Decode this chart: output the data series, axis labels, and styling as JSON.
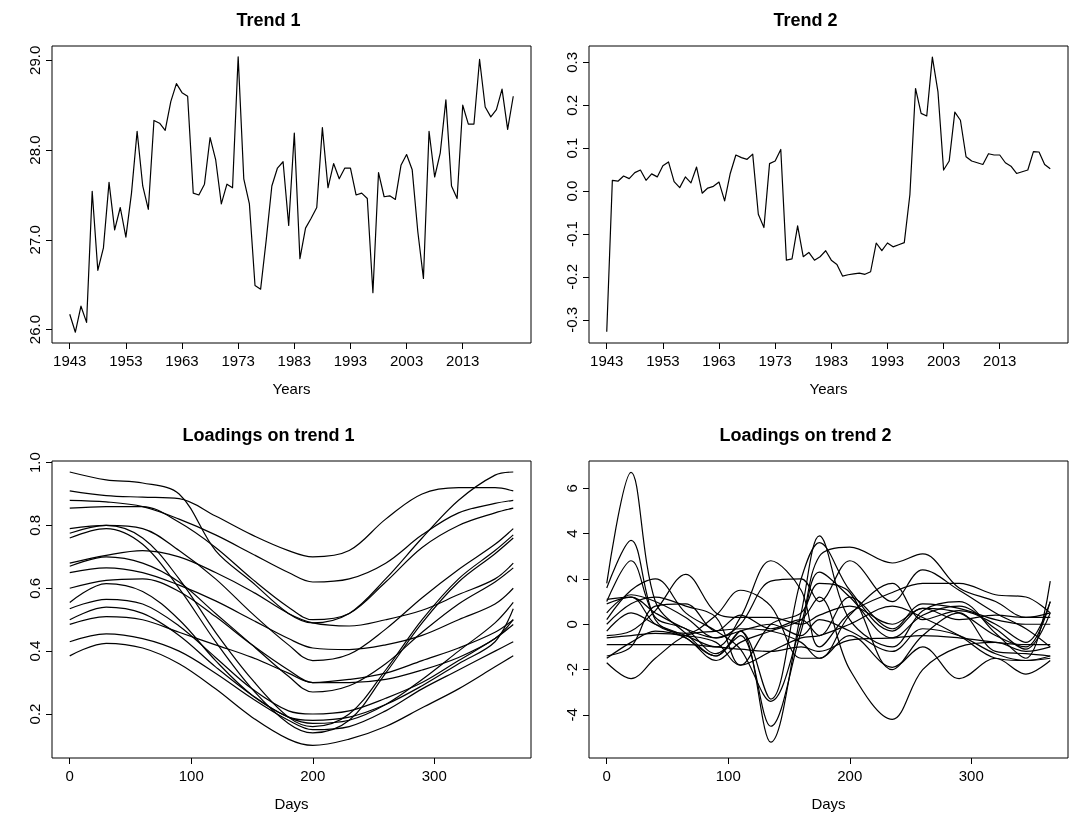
{
  "chart_data": [
    {
      "type": "line",
      "title": "Trend 1",
      "xlabel": "Years",
      "x": [
        1943,
        1944,
        1945,
        1946,
        1947,
        1948,
        1949,
        1950,
        1951,
        1952,
        1953,
        1954,
        1955,
        1956,
        1957,
        1958,
        1959,
        1960,
        1961,
        1962,
        1963,
        1964,
        1965,
        1966,
        1967,
        1968,
        1969,
        1970,
        1971,
        1972,
        1973,
        1974,
        1975,
        1976,
        1977,
        1978,
        1979,
        1980,
        1981,
        1982,
        1983,
        1984,
        1985,
        1986,
        1987,
        1988,
        1989,
        1990,
        1991,
        1992,
        1993,
        1994,
        1995,
        1996,
        1997,
        1998,
        1999,
        2000,
        2001,
        2002,
        2003,
        2004,
        2005,
        2006,
        2007,
        2008,
        2009,
        2010,
        2011,
        2012,
        2013,
        2014,
        2015,
        2016,
        2017,
        2018,
        2019,
        2020,
        2021,
        2022
      ],
      "xlim": [
        1939.84,
        2025.16
      ],
      "xticks": [
        1943,
        1953,
        1963,
        1973,
        1983,
        1993,
        2003,
        2013
      ],
      "ylim": [
        25.85,
        29.16
      ],
      "yticks": [
        {
          "value": 26,
          "label": "26.0"
        },
        {
          "value": 27,
          "label": "27.0"
        },
        {
          "value": 28,
          "label": "28.0"
        },
        {
          "value": 29,
          "label": "29.0"
        }
      ],
      "series": [
        {
          "color": "#000000",
          "values": [
            26.17,
            25.97,
            26.26,
            26.08,
            27.54,
            26.66,
            26.91,
            27.64,
            27.11,
            27.36,
            27.03,
            27.52,
            28.21,
            27.6,
            27.34,
            28.33,
            28.3,
            28.22,
            28.54,
            28.74,
            28.64,
            28.6,
            27.52,
            27.5,
            27.62,
            28.14,
            27.89,
            27.4,
            27.62,
            27.58,
            29.04,
            27.68,
            27.4,
            26.49,
            26.45,
            27.0,
            27.6,
            27.8,
            27.87,
            27.16,
            28.19,
            26.79,
            27.13,
            27.24,
            27.36,
            28.25,
            27.58,
            27.85,
            27.68,
            27.8,
            27.8,
            27.5,
            27.52,
            27.46,
            26.41,
            27.75,
            27.48,
            27.49,
            27.45,
            27.83,
            27.95,
            27.78,
            27.09,
            26.57,
            28.21,
            27.7,
            27.97,
            28.56,
            27.6,
            27.46,
            28.5,
            28.29,
            28.29,
            29.01,
            28.48,
            28.37,
            28.45,
            28.68,
            28.23,
            28.6
          ]
        }
      ]
    },
    {
      "type": "line",
      "title": "Trend 2",
      "xlabel": "Years",
      "x": [
        1943,
        1944,
        1945,
        1946,
        1947,
        1948,
        1949,
        1950,
        1951,
        1952,
        1953,
        1954,
        1955,
        1956,
        1957,
        1958,
        1959,
        1960,
        1961,
        1962,
        1963,
        1964,
        1965,
        1966,
        1967,
        1968,
        1969,
        1970,
        1971,
        1972,
        1973,
        1974,
        1975,
        1976,
        1977,
        1978,
        1979,
        1980,
        1981,
        1982,
        1983,
        1984,
        1985,
        1986,
        1987,
        1988,
        1989,
        1990,
        1991,
        1992,
        1993,
        1994,
        1995,
        1996,
        1997,
        1998,
        1999,
        2000,
        2001,
        2002,
        2003,
        2004,
        2005,
        2006,
        2007,
        2008,
        2009,
        2010,
        2011,
        2012,
        2013,
        2014,
        2015,
        2016,
        2017,
        2018,
        2019,
        2020,
        2021,
        2022
      ],
      "xlim": [
        1939.84,
        2025.16
      ],
      "xticks": [
        1943,
        1953,
        1963,
        1973,
        1983,
        1993,
        2003,
        2013
      ],
      "ylim": [
        -0.354,
        0.338
      ],
      "yticks": [
        -0.3,
        -0.2,
        -0.1,
        {
          "value": 0,
          "label": "0.0"
        },
        0.1,
        0.2,
        0.3
      ],
      "series": [
        {
          "color": "#000000",
          "values": [
            -0.328,
            0.025,
            0.023,
            0.035,
            0.029,
            0.043,
            0.049,
            0.025,
            0.04,
            0.033,
            0.059,
            0.068,
            0.022,
            0.008,
            0.033,
            0.019,
            0.056,
            -0.005,
            0.007,
            0.011,
            0.021,
            -0.023,
            0.041,
            0.084,
            0.078,
            0.074,
            0.086,
            -0.054,
            -0.085,
            0.064,
            0.07,
            0.097,
            -0.161,
            -0.158,
            -0.081,
            -0.153,
            -0.143,
            -0.161,
            -0.153,
            -0.139,
            -0.161,
            -0.171,
            -0.198,
            -0.195,
            -0.193,
            -0.191,
            -0.194,
            -0.188,
            -0.121,
            -0.139,
            -0.121,
            -0.13,
            -0.125,
            -0.12,
            -0.008,
            0.239,
            0.181,
            0.175,
            0.312,
            0.231,
            0.049,
            0.07,
            0.184,
            0.165,
            0.08,
            0.07,
            0.066,
            0.062,
            0.087,
            0.084,
            0.084,
            0.066,
            0.058,
            0.041,
            0.045,
            0.049,
            0.092,
            0.091,
            0.062,
            0.052
          ]
        }
      ]
    },
    {
      "type": "line",
      "title": "Loadings on trend 1",
      "xlabel": "Days",
      "x": [
        0,
        30,
        60,
        90,
        120,
        150,
        180,
        200,
        230,
        260,
        290,
        320,
        350,
        365
      ],
      "xlim": [
        -14.6,
        379.6
      ],
      "xticks": [
        0,
        100,
        200,
        300
      ],
      "ylim": [
        0.06,
        1.005
      ],
      "yticks": [
        0.2,
        0.4,
        0.6,
        0.8,
        {
          "value": 1,
          "label": "1.0"
        }
      ],
      "series": [
        {
          "color": "#000000",
          "values": [
            0.97,
            0.945,
            0.935,
            0.9,
            0.72,
            0.62,
            0.52,
            0.49,
            0.52,
            0.63,
            0.76,
            0.88,
            0.96,
            0.97
          ]
        },
        {
          "color": "#000000",
          "values": [
            0.91,
            0.895,
            0.89,
            0.885,
            0.83,
            0.77,
            0.72,
            0.7,
            0.72,
            0.82,
            0.9,
            0.92,
            0.92,
            0.91
          ]
        },
        {
          "color": "#000000",
          "values": [
            0.88,
            0.875,
            0.86,
            0.82,
            0.77,
            0.71,
            0.65,
            0.62,
            0.63,
            0.68,
            0.77,
            0.84,
            0.87,
            0.88
          ]
        },
        {
          "color": "#000000",
          "values": [
            0.855,
            0.86,
            0.86,
            0.81,
            0.73,
            0.63,
            0.54,
            0.5,
            0.52,
            0.62,
            0.73,
            0.8,
            0.84,
            0.855
          ]
        },
        {
          "color": "#000000",
          "values": [
            0.79,
            0.8,
            0.79,
            0.72,
            0.63,
            0.52,
            0.42,
            0.37,
            0.39,
            0.47,
            0.57,
            0.66,
            0.74,
            0.79
          ]
        },
        {
          "color": "#000000",
          "values": [
            0.775,
            0.8,
            0.76,
            0.63,
            0.46,
            0.31,
            0.19,
            0.16,
            0.2,
            0.34,
            0.5,
            0.63,
            0.72,
            0.77
          ]
        },
        {
          "color": "#000000",
          "values": [
            0.76,
            0.79,
            0.74,
            0.6,
            0.43,
            0.28,
            0.17,
            0.14,
            0.18,
            0.33,
            0.49,
            0.62,
            0.71,
            0.76
          ]
        },
        {
          "color": "#000000",
          "values": [
            0.68,
            0.705,
            0.72,
            0.7,
            0.65,
            0.59,
            0.52,
            0.49,
            0.48,
            0.5,
            0.53,
            0.58,
            0.63,
            0.68
          ]
        },
        {
          "color": "#000000",
          "values": [
            0.67,
            0.7,
            0.68,
            0.62,
            0.52,
            0.42,
            0.32,
            0.27,
            0.29,
            0.36,
            0.46,
            0.55,
            0.62,
            0.665
          ]
        },
        {
          "color": "#000000",
          "values": [
            0.65,
            0.665,
            0.65,
            0.61,
            0.56,
            0.5,
            0.44,
            0.41,
            0.405,
            0.42,
            0.45,
            0.5,
            0.55,
            0.6
          ]
        },
        {
          "color": "#000000",
          "values": [
            0.6,
            0.625,
            0.63,
            0.59,
            0.51,
            0.42,
            0.34,
            0.3,
            0.31,
            0.33,
            0.37,
            0.41,
            0.46,
            0.5
          ]
        },
        {
          "color": "#000000",
          "values": [
            0.555,
            0.615,
            0.59,
            0.5,
            0.37,
            0.26,
            0.19,
            0.17,
            0.18,
            0.23,
            0.31,
            0.4,
            0.49,
            0.555
          ]
        },
        {
          "color": "#000000",
          "values": [
            0.535,
            0.565,
            0.55,
            0.48,
            0.38,
            0.28,
            0.21,
            0.2,
            0.21,
            0.25,
            0.3,
            0.37,
            0.44,
            0.485
          ]
        },
        {
          "color": "#000000",
          "values": [
            0.5,
            0.54,
            0.52,
            0.45,
            0.35,
            0.26,
            0.19,
            0.18,
            0.19,
            0.23,
            0.29,
            0.36,
            0.43,
            0.535
          ]
        },
        {
          "color": "#000000",
          "values": [
            0.485,
            0.51,
            0.5,
            0.46,
            0.42,
            0.38,
            0.33,
            0.3,
            0.3,
            0.31,
            0.34,
            0.38,
            0.44,
            0.5
          ]
        },
        {
          "color": "#000000",
          "values": [
            0.43,
            0.455,
            0.44,
            0.4,
            0.33,
            0.25,
            0.18,
            0.15,
            0.16,
            0.21,
            0.28,
            0.34,
            0.4,
            0.43
          ]
        },
        {
          "color": "#000000",
          "values": [
            0.385,
            0.425,
            0.41,
            0.36,
            0.28,
            0.19,
            0.12,
            0.1,
            0.12,
            0.16,
            0.22,
            0.28,
            0.35,
            0.385
          ]
        }
      ]
    },
    {
      "type": "line",
      "title": "Loadings on trend 2",
      "xlabel": "Days",
      "x": [
        0,
        20,
        40,
        65,
        90,
        110,
        135,
        160,
        175,
        200,
        235,
        260,
        290,
        320,
        345,
        365
      ],
      "xlim": [
        -14.6,
        379.6
      ],
      "xticks": [
        0,
        100,
        200,
        300
      ],
      "ylim": [
        -5.9,
        7.2
      ],
      "yticks": [
        -4,
        -2,
        0,
        2,
        4,
        6
      ],
      "series": [
        {
          "color": "#000000",
          "values": [
            1.8,
            6.7,
            1.0,
            -0.4,
            -1.4,
            -0.3,
            -3.3,
            2.0,
            3.6,
            1.5,
            -0.3,
            0.7,
            0.5,
            -0.5,
            -1.0,
            1.0
          ]
        },
        {
          "color": "#000000",
          "values": [
            1.6,
            3.7,
            0.2,
            -0.6,
            -1.4,
            -0.3,
            -5.2,
            0.5,
            3.9,
            0.2,
            -1.0,
            0.6,
            1.0,
            -0.4,
            -1.5,
            1.9
          ]
        },
        {
          "color": "#000000",
          "values": [
            1.0,
            2.8,
            0.3,
            -0.2,
            -1.3,
            -0.5,
            -4.5,
            -0.3,
            2.3,
            1.2,
            -0.6,
            0.4,
            0.8,
            -0.2,
            -1.1,
            0.5
          ]
        },
        {
          "color": "#000000",
          "values": [
            0.2,
            1.5,
            2.0,
            0.5,
            -0.3,
            -1.1,
            -3.4,
            0.0,
            3.0,
            3.4,
            2.7,
            3.1,
            1.6,
            1.0,
            0.3,
            0.5
          ]
        },
        {
          "color": "#000000",
          "values": [
            -0.5,
            -0.3,
            0.6,
            2.2,
            0.5,
            0.3,
            0.3,
            0.0,
            0.4,
            0.8,
            0.0,
            0.7,
            0.2,
            0.4,
            0.3,
            0.3
          ]
        },
        {
          "color": "#000000",
          "values": [
            -0.3,
            0.5,
            0.0,
            -0.5,
            -1.0,
            0.3,
            2.8,
            1.5,
            -1.0,
            0.5,
            1.4,
            1.8,
            1.8,
            1.3,
            1.2,
            0.5
          ]
        },
        {
          "color": "#000000",
          "values": [
            0.9,
            1.2,
            0.5,
            -0.2,
            -0.6,
            0.0,
            1.9,
            2.0,
            1.0,
            2.8,
            1.0,
            2.4,
            1.5,
            0.5,
            -0.2,
            -1.0
          ]
        },
        {
          "color": "#000000",
          "values": [
            -1.7,
            -2.4,
            -1.5,
            -0.5,
            -0.3,
            -0.2,
            -0.3,
            -0.8,
            -1.5,
            -0.5,
            -1.9,
            -1.0,
            -2.4,
            -1.5,
            -2.2,
            -1.6
          ]
        },
        {
          "color": "#000000",
          "values": [
            -1.5,
            -0.8,
            -0.3,
            -0.6,
            -1.6,
            -0.8,
            -0.3,
            0.2,
            1.2,
            -2.0,
            -4.2,
            -2.0,
            -1.0,
            -0.8,
            -1.2,
            -1.0
          ]
        },
        {
          "color": "#000000",
          "values": [
            -0.9,
            -0.9,
            -0.9,
            -0.9,
            -1.0,
            -1.1,
            -1.2,
            -1.0,
            -1.2,
            -0.7,
            -0.6,
            -0.5,
            -0.6,
            -0.8,
            -0.9,
            -0.9
          ]
        },
        {
          "color": "#000000",
          "values": [
            -0.6,
            -0.5,
            -0.4,
            -0.5,
            -0.8,
            -1.8,
            -1.2,
            -0.6,
            -0.5,
            0.0,
            0.8,
            0.3,
            -0.5,
            -1.5,
            -1.6,
            -1.5
          ]
        },
        {
          "color": "#000000",
          "values": [
            0.0,
            0.9,
            1.2,
            0.8,
            0.3,
            -1.8,
            0.0,
            0.5,
            1.8,
            1.4,
            -2.0,
            -0.5,
            0.5,
            -1.2,
            -1.3,
            -1.4
          ]
        },
        {
          "color": "#000000",
          "values": [
            1.1,
            1.2,
            0.0,
            -0.4,
            0.4,
            1.5,
            0.8,
            -1.5,
            -1.5,
            0.4,
            1.8,
            0.2,
            0.6,
            0.0,
            -0.8,
            1.0
          ]
        },
        {
          "color": "#000000",
          "values": [
            -1.4,
            -1.0,
            0.8,
            0.9,
            -0.3,
            0.4,
            -0.2,
            0.2,
            -0.5,
            1.2,
            -0.2,
            0.9,
            0.7,
            0.2,
            0.0,
            0.0
          ]
        },
        {
          "color": "#000000",
          "values": [
            0.5,
            1.3,
            1.0,
            0.3,
            -0.6,
            -0.3,
            0.0,
            -0.5,
            0.2,
            -0.3,
            -1.2,
            -0.2,
            -0.5,
            -1.3,
            -1.6,
            -1.4
          ]
        }
      ]
    }
  ]
}
